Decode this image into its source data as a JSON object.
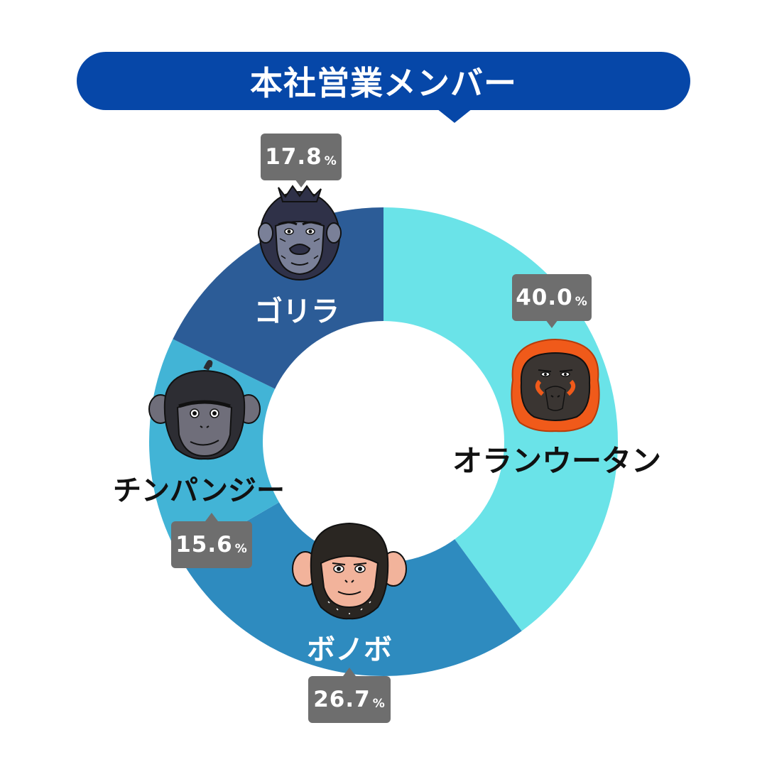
{
  "title": "本社営業メンバー",
  "percent_unit": "%",
  "colors": {
    "banner": "#0647a8",
    "badge": "#6e6e6e",
    "orangutan": "#6ae3e8",
    "bonobo": "#2e8bbf",
    "chimpanzee": "#42b4d6",
    "gorilla": "#2c5c97"
  },
  "chart_data": {
    "type": "pie",
    "style": "donut",
    "categories": [
      "オランウータン",
      "ボノボ",
      "チンパンジー",
      "ゴリラ"
    ],
    "values": [
      40.0,
      26.7,
      15.6,
      17.8
    ],
    "value_labels": [
      "40.0",
      "26.7",
      "15.6",
      "17.8"
    ],
    "icons": [
      "orangutan-face-icon",
      "bonobo-face-icon",
      "chimpanzee-face-icon",
      "gorilla-face-icon"
    ],
    "start_angle": "12 o'clock",
    "direction": "clockwise"
  }
}
